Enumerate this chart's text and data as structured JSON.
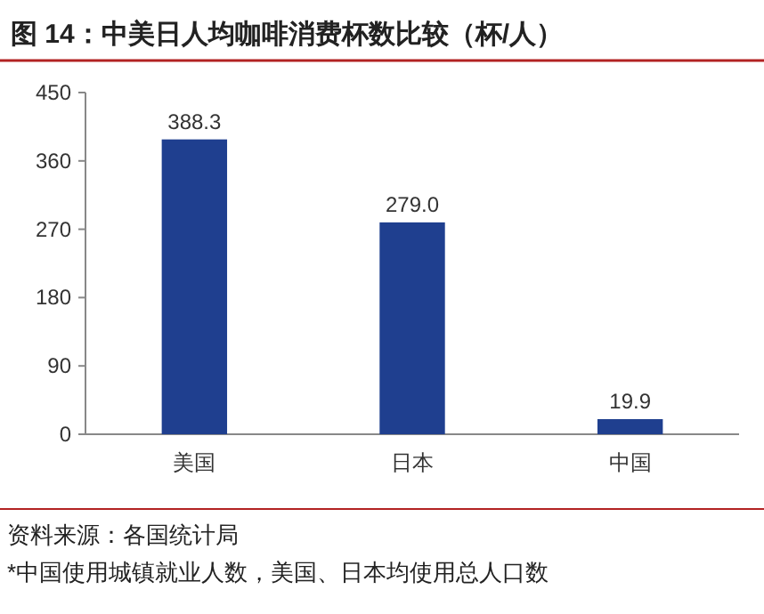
{
  "chart_data": {
    "type": "bar",
    "title": "图 14：中美日人均咖啡消费杯数比较（杯/人）",
    "categories": [
      "美国",
      "日本",
      "中国"
    ],
    "values": [
      388.3,
      279.0,
      19.9
    ],
    "value_labels": [
      "388.3",
      "279.0",
      "19.9"
    ],
    "color": "#1f3f8f",
    "ylim": [
      0,
      450
    ],
    "yticks": [
      0,
      90,
      180,
      270,
      360,
      450
    ],
    "grid": false,
    "annotations": [
      "资料来源：各国统计局",
      "*中国使用城镇就业人数，美国、日本均使用总人口数"
    ]
  }
}
